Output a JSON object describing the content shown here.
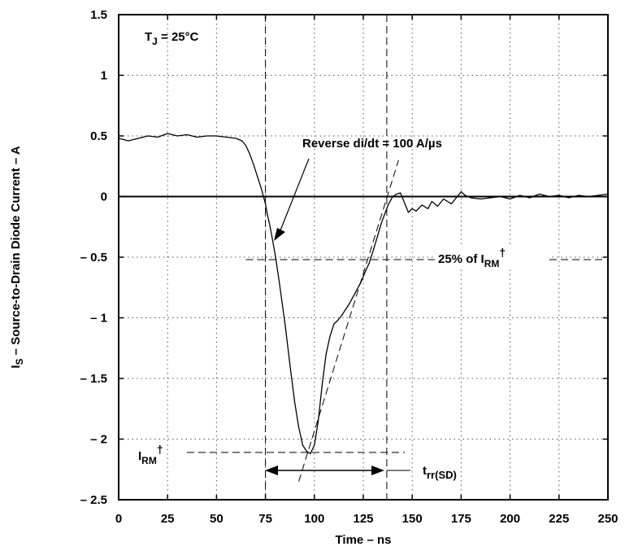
{
  "chart_data": {
    "type": "line",
    "xlabel": "Time – ns",
    "ylabel": "I",
    "ylabel_sub": "S",
    "ylabel_rest": " – Source-to-Drain Diode Current – A",
    "xlim": [
      0,
      250
    ],
    "ylim": [
      -2.5,
      1.5
    ],
    "x_ticks": [
      0,
      25,
      50,
      75,
      100,
      125,
      150,
      175,
      200,
      225,
      250
    ],
    "y_ticks": [
      1.5,
      1,
      0.5,
      0,
      -0.5,
      -1,
      -1.5,
      -2,
      -2.5
    ],
    "y_tick_labels": [
      "1.5",
      "1",
      "0.5",
      "0",
      "– 0.5",
      "– 1",
      "– 1.5",
      "– 2",
      "– 2.5"
    ],
    "grid": "dotted",
    "condition": {
      "main": "T",
      "sub": "J",
      "rest": " = 25°C"
    },
    "annotations": {
      "reverse": "Reverse di/dt = 100 A/µs",
      "pct_main": "25% of I",
      "pct_sub": "RM",
      "pct_sup": "†",
      "irm_main": "I",
      "irm_sub": "RM",
      "irm_sup": "†",
      "trr_main": "t",
      "trr_sub": "rr(SD)"
    },
    "reference_values": {
      "t_start": 75,
      "t_end": 137,
      "i_rm": -2.11,
      "pct25_level": -0.52
    },
    "series": [
      {
        "x": [
          0,
          5,
          10,
          15,
          20,
          25,
          30,
          35,
          40,
          45,
          50,
          55,
          60,
          63,
          65,
          67,
          69,
          71,
          73,
          74,
          75,
          76,
          77,
          78,
          80,
          82,
          85,
          88,
          90,
          92,
          94,
          96,
          98,
          100,
          102,
          104,
          106,
          108,
          110,
          112,
          114,
          116,
          118,
          120,
          122,
          124,
          126,
          128,
          130,
          132,
          134,
          136,
          138,
          140,
          142,
          144,
          146,
          148,
          150,
          152,
          155,
          158,
          160,
          163,
          166,
          170,
          173,
          175,
          177,
          180,
          185,
          190,
          195,
          200,
          205,
          210,
          215,
          220,
          225,
          230,
          235,
          240,
          245,
          250
        ],
        "y": [
          0.48,
          0.46,
          0.48,
          0.5,
          0.49,
          0.52,
          0.5,
          0.51,
          0.49,
          0.5,
          0.5,
          0.49,
          0.48,
          0.46,
          0.42,
          0.35,
          0.26,
          0.16,
          0.06,
          0.0,
          -0.06,
          -0.15,
          -0.22,
          -0.3,
          -0.48,
          -0.7,
          -1.05,
          -1.45,
          -1.7,
          -1.9,
          -2.05,
          -2.1,
          -2.12,
          -2.05,
          -1.85,
          -1.55,
          -1.3,
          -1.15,
          -1.05,
          -1.02,
          -0.98,
          -0.93,
          -0.88,
          -0.82,
          -0.76,
          -0.7,
          -0.62,
          -0.55,
          -0.45,
          -0.34,
          -0.23,
          -0.14,
          -0.06,
          0.0,
          0.02,
          0.03,
          -0.05,
          -0.13,
          -0.1,
          -0.12,
          -0.07,
          -0.1,
          -0.04,
          -0.08,
          -0.02,
          -0.06,
          0.0,
          0.04,
          0.01,
          -0.01,
          -0.02,
          -0.01,
          0.0,
          -0.02,
          0.01,
          -0.01,
          0.02,
          0.0,
          0.01,
          -0.01,
          0.01,
          0.0,
          0.01,
          0.02
        ]
      }
    ]
  }
}
